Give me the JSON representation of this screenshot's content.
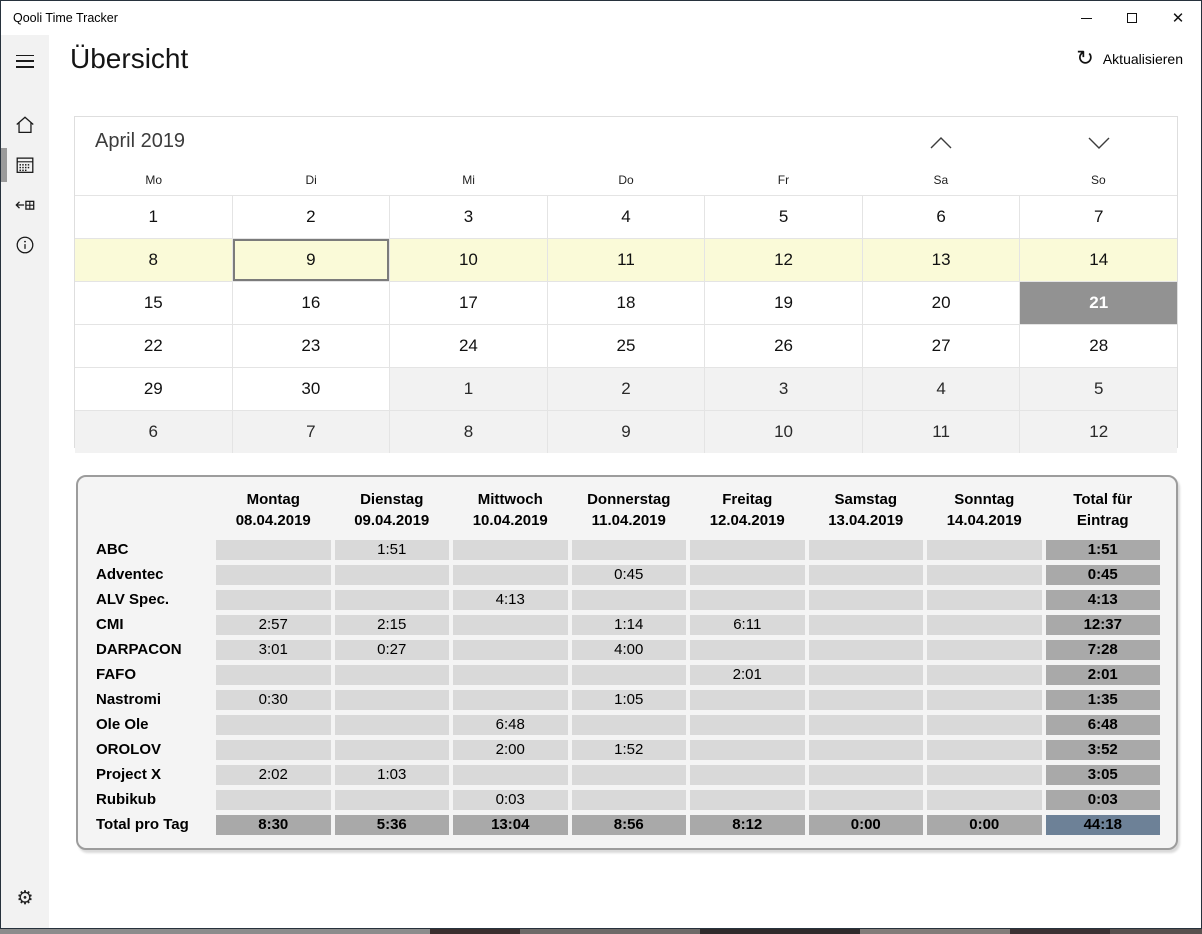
{
  "window": {
    "title": "Qooli Time Tracker",
    "controls": {
      "minimize": "minimize",
      "maximize": "maximize",
      "close": "✕"
    }
  },
  "sidebar": {
    "items": [
      {
        "icon": "menu-icon"
      },
      {
        "icon": "home-icon"
      },
      {
        "icon": "calendar-icon",
        "selected": true
      },
      {
        "icon": "arrow-into-grid-icon"
      },
      {
        "icon": "info-icon"
      },
      {
        "icon": "settings-gear-icon",
        "glyph": "⚙"
      }
    ]
  },
  "header": {
    "title": "Übersicht",
    "refresh_label": "Aktualisieren",
    "refresh_glyph": "↻"
  },
  "calendar": {
    "month_label": "April 2019",
    "weekdays": [
      "Mo",
      "Di",
      "Mi",
      "Do",
      "Fr",
      "Sa",
      "So"
    ],
    "weeks": [
      [
        {
          "day": "1"
        },
        {
          "day": "2"
        },
        {
          "day": "3"
        },
        {
          "day": "4"
        },
        {
          "day": "5"
        },
        {
          "day": "6"
        },
        {
          "day": "7"
        }
      ],
      [
        {
          "day": "8",
          "state": "week"
        },
        {
          "day": "9",
          "state": "selected"
        },
        {
          "day": "10",
          "state": "week"
        },
        {
          "day": "11",
          "state": "week"
        },
        {
          "day": "12",
          "state": "week"
        },
        {
          "day": "13",
          "state": "week"
        },
        {
          "day": "14",
          "state": "week"
        }
      ],
      [
        {
          "day": "15"
        },
        {
          "day": "16"
        },
        {
          "day": "17"
        },
        {
          "day": "18"
        },
        {
          "day": "19"
        },
        {
          "day": "20"
        },
        {
          "day": "21",
          "state": "today"
        }
      ],
      [
        {
          "day": "22"
        },
        {
          "day": "23"
        },
        {
          "day": "24"
        },
        {
          "day": "25"
        },
        {
          "day": "26"
        },
        {
          "day": "27"
        },
        {
          "day": "28"
        }
      ],
      [
        {
          "day": "29"
        },
        {
          "day": "30"
        },
        {
          "day": "1",
          "state": "other"
        },
        {
          "day": "2",
          "state": "other"
        },
        {
          "day": "3",
          "state": "other"
        },
        {
          "day": "4",
          "state": "other"
        },
        {
          "day": "5",
          "state": "other"
        }
      ],
      [
        {
          "day": "6",
          "state": "other"
        },
        {
          "day": "7",
          "state": "other"
        },
        {
          "day": "8",
          "state": "other"
        },
        {
          "day": "9",
          "state": "other"
        },
        {
          "day": "10",
          "state": "other"
        },
        {
          "day": "11",
          "state": "other"
        },
        {
          "day": "12",
          "state": "other"
        }
      ]
    ]
  },
  "timesheet": {
    "columns": [
      {
        "title": "Montag",
        "date": "08.04.2019"
      },
      {
        "title": "Dienstag",
        "date": "09.04.2019"
      },
      {
        "title": "Mittwoch",
        "date": "10.04.2019"
      },
      {
        "title": "Donnerstag",
        "date": "11.04.2019"
      },
      {
        "title": "Freitag",
        "date": "12.04.2019"
      },
      {
        "title": "Samstag",
        "date": "13.04.2019"
      },
      {
        "title": "Sonntag",
        "date": "14.04.2019"
      }
    ],
    "total_header": "Total für Eintrag",
    "rows": [
      {
        "label": "ABC",
        "values": [
          "",
          "1:51",
          "",
          "",
          "",
          "",
          ""
        ],
        "total": "1:51"
      },
      {
        "label": "Adventec",
        "values": [
          "",
          "",
          "",
          "0:45",
          "",
          "",
          ""
        ],
        "total": "0:45"
      },
      {
        "label": "ALV Spec.",
        "values": [
          "",
          "",
          "4:13",
          "",
          "",
          "",
          ""
        ],
        "total": "4:13"
      },
      {
        "label": "CMI",
        "values": [
          "2:57",
          "2:15",
          "",
          "1:14",
          "6:11",
          "",
          ""
        ],
        "total": "12:37"
      },
      {
        "label": "DARPACON",
        "values": [
          "3:01",
          "0:27",
          "",
          "4:00",
          "",
          "",
          ""
        ],
        "total": "7:28"
      },
      {
        "label": "FAFO",
        "values": [
          "",
          "",
          "",
          "",
          "2:01",
          "",
          ""
        ],
        "total": "2:01"
      },
      {
        "label": "Nastromi",
        "values": [
          "0:30",
          "",
          "",
          "1:05",
          "",
          "",
          ""
        ],
        "total": "1:35"
      },
      {
        "label": "Ole Ole",
        "values": [
          "",
          "",
          "6:48",
          "",
          "",
          "",
          ""
        ],
        "total": "6:48"
      },
      {
        "label": "OROLOV",
        "values": [
          "",
          "",
          "2:00",
          "1:52",
          "",
          "",
          ""
        ],
        "total": "3:52"
      },
      {
        "label": "Project X",
        "values": [
          "2:02",
          "1:03",
          "",
          "",
          "",
          "",
          ""
        ],
        "total": "3:05"
      },
      {
        "label": "Rubikub",
        "values": [
          "",
          "",
          "0:03",
          "",
          "",
          "",
          ""
        ],
        "total": "0:03"
      }
    ],
    "total_row": {
      "label": "Total pro Tag",
      "values": [
        "8:30",
        "5:36",
        "13:04",
        "8:56",
        "8:12",
        "0:00",
        "0:00"
      ],
      "total": "44:18"
    }
  },
  "colors": {
    "week_highlight": "#fafad8",
    "today_bg": "#929292",
    "value_cell": "#d9d9d9",
    "total_cell": "#a9a9a9",
    "grand_total_cell": "#6d8197",
    "sidebar_bg": "#f2f2f2"
  }
}
